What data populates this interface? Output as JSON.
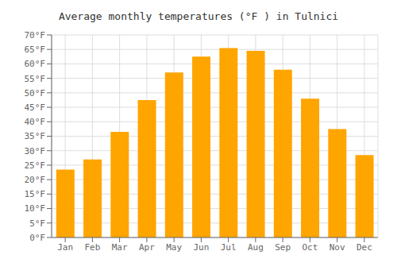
{
  "chart_data": {
    "type": "bar",
    "title": "Average monthly temperatures (°F ) in Tulnici",
    "categories": [
      "Jan",
      "Feb",
      "Mar",
      "Apr",
      "May",
      "Jun",
      "Jul",
      "Aug",
      "Sep",
      "Oct",
      "Nov",
      "Dec"
    ],
    "values": [
      23.5,
      27.0,
      36.5,
      47.5,
      57.0,
      62.5,
      65.5,
      64.5,
      58.0,
      48.0,
      37.5,
      28.5
    ],
    "color": "#FFA500",
    "ylim": [
      0,
      70
    ],
    "yticks": [
      {
        "value": 0,
        "label": "0°F"
      },
      {
        "value": 5,
        "label": "5°F"
      },
      {
        "value": 10,
        "label": "10°F"
      },
      {
        "value": 15,
        "label": "15°F"
      },
      {
        "value": 20,
        "label": "20°F"
      },
      {
        "value": 25,
        "label": "25°F"
      },
      {
        "value": 30,
        "label": "30°F"
      },
      {
        "value": 35,
        "label": "35°F"
      },
      {
        "value": 40,
        "label": "40°F"
      },
      {
        "value": 45,
        "label": "45°F"
      },
      {
        "value": 50,
        "label": "50°F"
      },
      {
        "value": 55,
        "label": "55°F"
      },
      {
        "value": 60,
        "label": "60°F"
      },
      {
        "value": 65,
        "label": "65°F"
      },
      {
        "value": 70,
        "label": "70°F"
      }
    ],
    "grid": true
  }
}
